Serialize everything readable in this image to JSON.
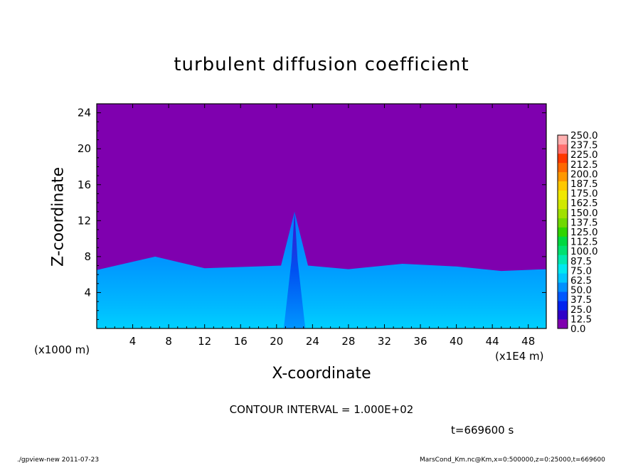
{
  "chart_data": {
    "type": "heatmap",
    "title": "turbulent diffusion coefficient",
    "xlabel": "X-coordinate",
    "ylabel": "Z-coordinate",
    "x_unit": "(x1E4 m)",
    "y_unit": "(x1000 m)",
    "xlim": [
      0,
      50
    ],
    "ylim": [
      0,
      25
    ],
    "x_ticks": [
      "4",
      "8",
      "12",
      "16",
      "20",
      "24",
      "28",
      "32",
      "36",
      "40",
      "44",
      "48"
    ],
    "y_ticks": [
      "4",
      "8",
      "12",
      "16",
      "20",
      "24"
    ],
    "colorbar": {
      "levels": [
        "0.0",
        "12.5",
        "25.0",
        "37.5",
        "50.0",
        "62.5",
        "75.0",
        "87.5",
        "100.0",
        "112.5",
        "125.0",
        "137.5",
        "150.0",
        "162.5",
        "175.0",
        "187.5",
        "200.0",
        "212.5",
        "225.0",
        "237.5",
        "250.0"
      ],
      "colors": [
        "#7f00af",
        "#2f00c8",
        "#0022ee",
        "#0058ff",
        "#0090ff",
        "#00c6ff",
        "#00e8f0",
        "#00e8b0",
        "#00e070",
        "#00d840",
        "#30d400",
        "#70d800",
        "#a0e000",
        "#d0e800",
        "#f0e800",
        "#ffc800",
        "#ff9800",
        "#ff6800",
        "#ff3800",
        "#ff7070",
        "#ffb0b0"
      ]
    },
    "boundary_layer_top_approx": [
      {
        "x": 0,
        "z": 6.5
      },
      {
        "x": 6.5,
        "z": 8.0
      },
      {
        "x": 12,
        "z": 6.7
      },
      {
        "x": 20.5,
        "z": 7.0
      },
      {
        "x": 22,
        "z": 13.0
      },
      {
        "x": 23.5,
        "z": 7.0
      },
      {
        "x": 28,
        "z": 6.6
      },
      {
        "x": 34,
        "z": 7.2
      },
      {
        "x": 40,
        "z": 6.9
      },
      {
        "x": 45,
        "z": 6.4
      },
      {
        "x": 50,
        "z": 6.6
      }
    ],
    "background_value": "0.0",
    "contour_interval": "CONTOUR INTERVAL = 1.000E+02",
    "time": "t=669600 s"
  },
  "footer": {
    "left": "./gpview-new   2011-07-23",
    "right": "MarsCond_Km.nc@Km,x=0:500000,z=0:25000,t=669600"
  }
}
